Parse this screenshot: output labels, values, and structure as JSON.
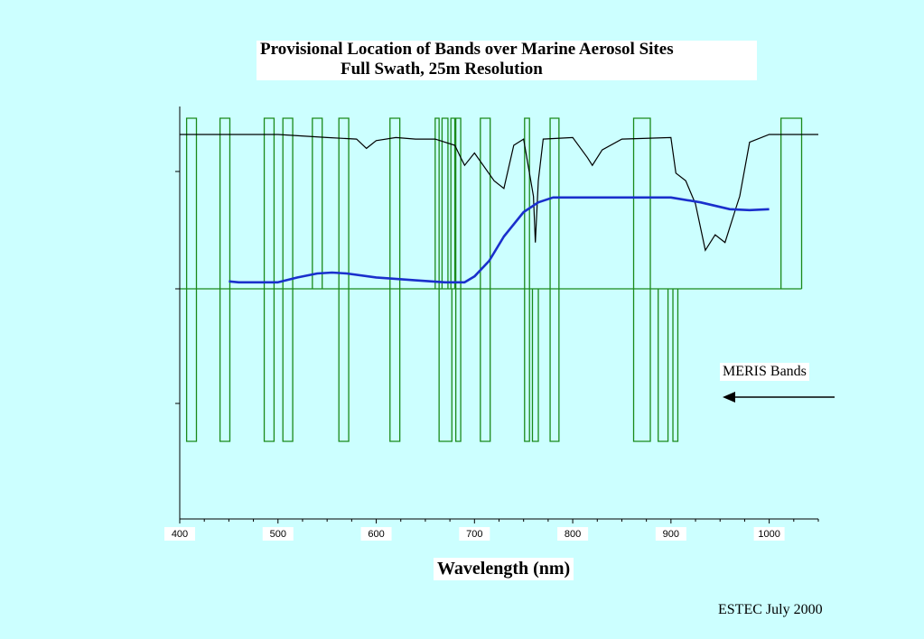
{
  "chart_data": {
    "type": "line",
    "title": "Provisional Location of Bands over Marine Aerosol Sites",
    "subtitle": "Full Swath, 25m Resolution",
    "xlabel": "Wavelength (nm)",
    "ylabel": "",
    "xlim": [
      400,
      1050
    ],
    "xticks": [
      400,
      500,
      600,
      700,
      800,
      900,
      1000
    ],
    "legend": {
      "label": "MERIS Bands",
      "placement": "right, with arrow pointing left"
    },
    "annotation": "ESTEC July 2000",
    "grid": false,
    "colors": {
      "bands": "#1a8a1a",
      "solar_transmission": "#000000",
      "aerosol_reflectance": "#1a2fcc"
    },
    "upper_bands": [
      [
        407,
        417
      ],
      [
        441,
        451
      ],
      [
        486,
        496
      ],
      [
        505,
        515
      ],
      [
        535,
        545
      ],
      [
        562,
        572
      ],
      [
        614,
        624
      ],
      [
        660,
        664
      ],
      [
        667,
        673
      ],
      [
        676,
        680
      ],
      [
        681,
        686
      ],
      [
        706,
        716
      ],
      [
        751,
        756
      ],
      [
        777,
        786
      ],
      [
        862,
        879
      ],
      [
        1012,
        1033
      ]
    ],
    "lower_bands": [
      [
        407,
        417
      ],
      [
        441,
        451
      ],
      [
        486,
        496
      ],
      [
        505,
        515
      ],
      [
        562,
        572
      ],
      [
        614,
        624
      ],
      [
        664,
        677
      ],
      [
        681,
        686
      ],
      [
        706,
        716
      ],
      [
        751,
        756
      ],
      [
        759,
        765
      ],
      [
        777,
        786
      ],
      [
        862,
        879
      ],
      [
        887,
        897
      ],
      [
        902,
        907
      ]
    ],
    "aerosol_reflectance": {
      "x": [
        450,
        460,
        480,
        500,
        520,
        540,
        555,
        570,
        600,
        640,
        670,
        690,
        700,
        715,
        730,
        750,
        765,
        780,
        800,
        850,
        900,
        930,
        960,
        980,
        1000
      ],
      "y": [
        0.04,
        0.03,
        0.03,
        0.03,
        0.08,
        0.12,
        0.13,
        0.12,
        0.08,
        0.05,
        0.03,
        0.03,
        0.09,
        0.25,
        0.5,
        0.75,
        0.85,
        0.9,
        0.9,
        0.9,
        0.9,
        0.85,
        0.78,
        0.77,
        0.78
      ]
    },
    "solar_transmission": {
      "x": [
        400,
        450,
        500,
        550,
        580,
        590,
        600,
        620,
        640,
        660,
        680,
        686,
        690,
        700,
        720,
        730,
        740,
        750,
        760,
        762,
        765,
        770,
        800,
        815,
        820,
        830,
        850,
        900,
        905,
        915,
        925,
        935,
        945,
        955,
        965,
        970,
        980,
        1000,
        1050
      ],
      "y": [
        1.0,
        1.0,
        1.0,
        0.98,
        0.97,
        0.91,
        0.96,
        0.98,
        0.97,
        0.97,
        0.93,
        0.85,
        0.8,
        0.88,
        0.7,
        0.65,
        0.93,
        0.97,
        0.6,
        0.3,
        0.7,
        0.97,
        0.98,
        0.85,
        0.8,
        0.9,
        0.97,
        0.98,
        0.75,
        0.7,
        0.55,
        0.25,
        0.35,
        0.3,
        0.5,
        0.6,
        0.95,
        1.0,
        1.0
      ]
    }
  }
}
